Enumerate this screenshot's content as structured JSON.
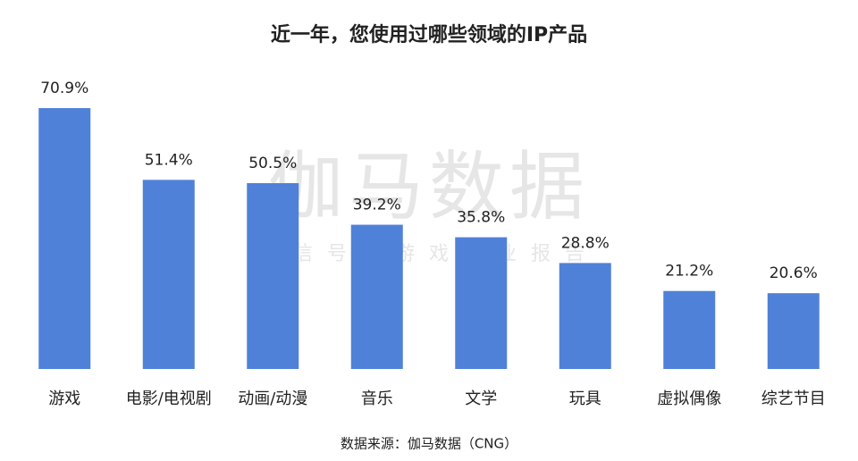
{
  "chart_data": {
    "type": "bar",
    "title": "近一年，您使用过哪些领域的IP产品",
    "categories": [
      "游戏",
      "电影/电视剧",
      "动画/动漫",
      "音乐",
      "文学",
      "玩具",
      "虚拟偶像",
      "综艺节目"
    ],
    "values": [
      70.9,
      51.4,
      50.5,
      39.2,
      35.8,
      28.8,
      21.2,
      20.6
    ],
    "value_labels": [
      "70.9%",
      "51.4%",
      "50.5%",
      "39.2%",
      "35.8%",
      "28.8%",
      "21.2%",
      "20.6%"
    ],
    "color": "#5081d8",
    "watermark": "伽马数据",
    "watermark_subtitle": "微信号：游戏产业报告",
    "source": "数据来源：伽马数据（CNG）"
  }
}
